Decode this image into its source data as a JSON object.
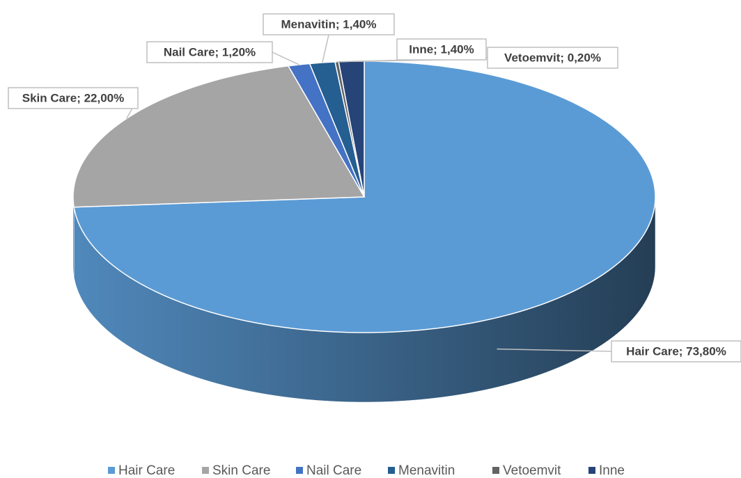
{
  "chart_data": {
    "type": "pie",
    "categories": [
      "Hair Care",
      "Skin Care",
      "Nail Care",
      "Menavitin",
      "Vetoemvit",
      "Inne"
    ],
    "values": [
      73.8,
      22,
      1.2,
      1.4,
      0.2,
      1.4
    ],
    "value_labels": [
      "Hair Care; 73,80%",
      "Skin Care; 22,00%",
      "Nail Care; 1,20%",
      "Menavitin; 1,40%",
      "Vetoemvit; 0,20%",
      "Inne; 1,40%"
    ],
    "colors": [
      "#5b9bd5",
      "#a5a5a5",
      "#4472c4",
      "#255e91",
      "#636363",
      "#264478"
    ],
    "legend": "bottom"
  }
}
